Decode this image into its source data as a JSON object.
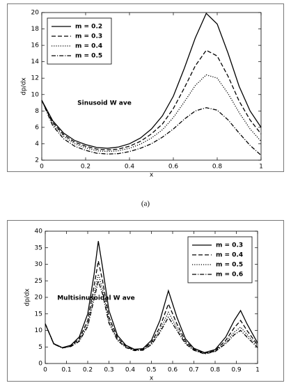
{
  "chart_data": [
    {
      "type": "line",
      "caption": "(a)",
      "xlabel": "x",
      "ylabel": "dp/dx",
      "annotation": "Sinusoid W ave",
      "legend": "upper left",
      "xlim": [
        0,
        1
      ],
      "xticks": [
        0,
        0.2,
        0.4,
        0.6,
        0.8,
        1
      ],
      "ylim": [
        2,
        20
      ],
      "yticks": [
        2,
        4,
        6,
        8,
        10,
        12,
        14,
        16,
        18,
        20
      ],
      "x": [
        0,
        0.05,
        0.1,
        0.15,
        0.2,
        0.25,
        0.3,
        0.35,
        0.4,
        0.45,
        0.5,
        0.55,
        0.6,
        0.65,
        0.7,
        0.75,
        0.8,
        0.85,
        0.9,
        0.95,
        1
      ],
      "series": [
        {
          "name": "m = 0.2",
          "color": "#000000",
          "style": "solid",
          "values": [
            9.3,
            6.8,
            5.3,
            4.4,
            3.9,
            3.55,
            3.45,
            3.6,
            4.0,
            4.7,
            5.8,
            7.4,
            9.8,
            13.2,
            16.9,
            19.9,
            18.6,
            15.0,
            11.0,
            8.0,
            6.0
          ]
        },
        {
          "name": "m = 0.3",
          "color": "#000000",
          "style": "dashed",
          "values": [
            9.3,
            6.6,
            5.1,
            4.2,
            3.7,
            3.35,
            3.25,
            3.35,
            3.7,
            4.3,
            5.2,
            6.4,
            8.3,
            10.8,
            13.5,
            15.4,
            14.7,
            12.2,
            9.2,
            6.9,
            5.2
          ]
        },
        {
          "name": "m = 0.4",
          "color": "#000000",
          "style": "dotted",
          "values": [
            9.3,
            6.4,
            4.9,
            4.0,
            3.5,
            3.15,
            3.05,
            3.15,
            3.45,
            3.95,
            4.7,
            5.7,
            7.2,
            9.1,
            11.1,
            12.4,
            12.0,
            10.1,
            7.8,
            5.8,
            4.3
          ]
        },
        {
          "name": "m = 0.5",
          "color": "#000000",
          "style": "dashdot",
          "values": [
            9.3,
            6.2,
            4.6,
            3.7,
            3.2,
            2.85,
            2.75,
            2.8,
            3.05,
            3.45,
            4.0,
            4.8,
            5.8,
            7.0,
            8.0,
            8.4,
            8.1,
            6.9,
            5.3,
            3.8,
            2.6
          ]
        }
      ]
    },
    {
      "type": "line",
      "xlabel": "x",
      "ylabel": "dp/dx",
      "annotation": "Multisinusoidal W ave",
      "legend": "upper right",
      "xlim": [
        0,
        1
      ],
      "xticks": [
        0,
        0.1,
        0.2,
        0.3,
        0.4,
        0.5,
        0.6,
        0.7,
        0.8,
        0.9,
        1
      ],
      "ylim": [
        0,
        40
      ],
      "yticks": [
        0,
        5,
        10,
        15,
        20,
        25,
        30,
        35,
        40
      ],
      "x": [
        0,
        0.04,
        0.08,
        0.12,
        0.16,
        0.2,
        0.23,
        0.25,
        0.27,
        0.3,
        0.34,
        0.38,
        0.42,
        0.46,
        0.5,
        0.54,
        0.58,
        0.62,
        0.66,
        0.7,
        0.75,
        0.8,
        0.85,
        0.89,
        0.92,
        0.95,
        1
      ],
      "series": [
        {
          "name": "m = 0.3",
          "color": "#000000",
          "style": "solid",
          "values": [
            12,
            6,
            4.8,
            5.5,
            8,
            15,
            27,
            37,
            29,
            16,
            8.5,
            5.5,
            4.3,
            4.5,
            7,
            13,
            22,
            14,
            7.5,
            4.6,
            3.3,
            4.2,
            8,
            13,
            16,
            12,
            6.2
          ]
        },
        {
          "name": "m = 0.4",
          "color": "#000000",
          "style": "dashed",
          "values": [
            12,
            6,
            4.8,
            5.3,
            7.4,
            13,
            23.5,
            31,
            25,
            14,
            7.8,
            5.2,
            4.1,
            4.3,
            6.4,
            11,
            18,
            12,
            6.8,
            4.3,
            3.1,
            3.9,
            7,
            10.8,
            13,
            10,
            5.6
          ]
        },
        {
          "name": "m = 0.5",
          "color": "#000000",
          "style": "dotted",
          "values": [
            12,
            5.9,
            4.7,
            5.2,
            7,
            12,
            21,
            27,
            22.5,
            13,
            7.3,
            5,
            4,
            4.1,
            6,
            10,
            15.5,
            10.8,
            6.3,
            4.1,
            3,
            3.7,
            6.4,
            9.5,
            11,
            8.8,
            5.2
          ]
        },
        {
          "name": "m = 0.6",
          "color": "#000000",
          "style": "dashdot",
          "values": [
            12,
            5.9,
            4.7,
            5.1,
            6.7,
            11.2,
            19.5,
            25,
            21,
            12.2,
            7,
            4.8,
            3.9,
            4,
            5.7,
            9.4,
            14,
            10,
            6,
            4,
            2.9,
            3.6,
            6,
            8.7,
            10,
            8,
            4.8
          ]
        }
      ]
    }
  ]
}
